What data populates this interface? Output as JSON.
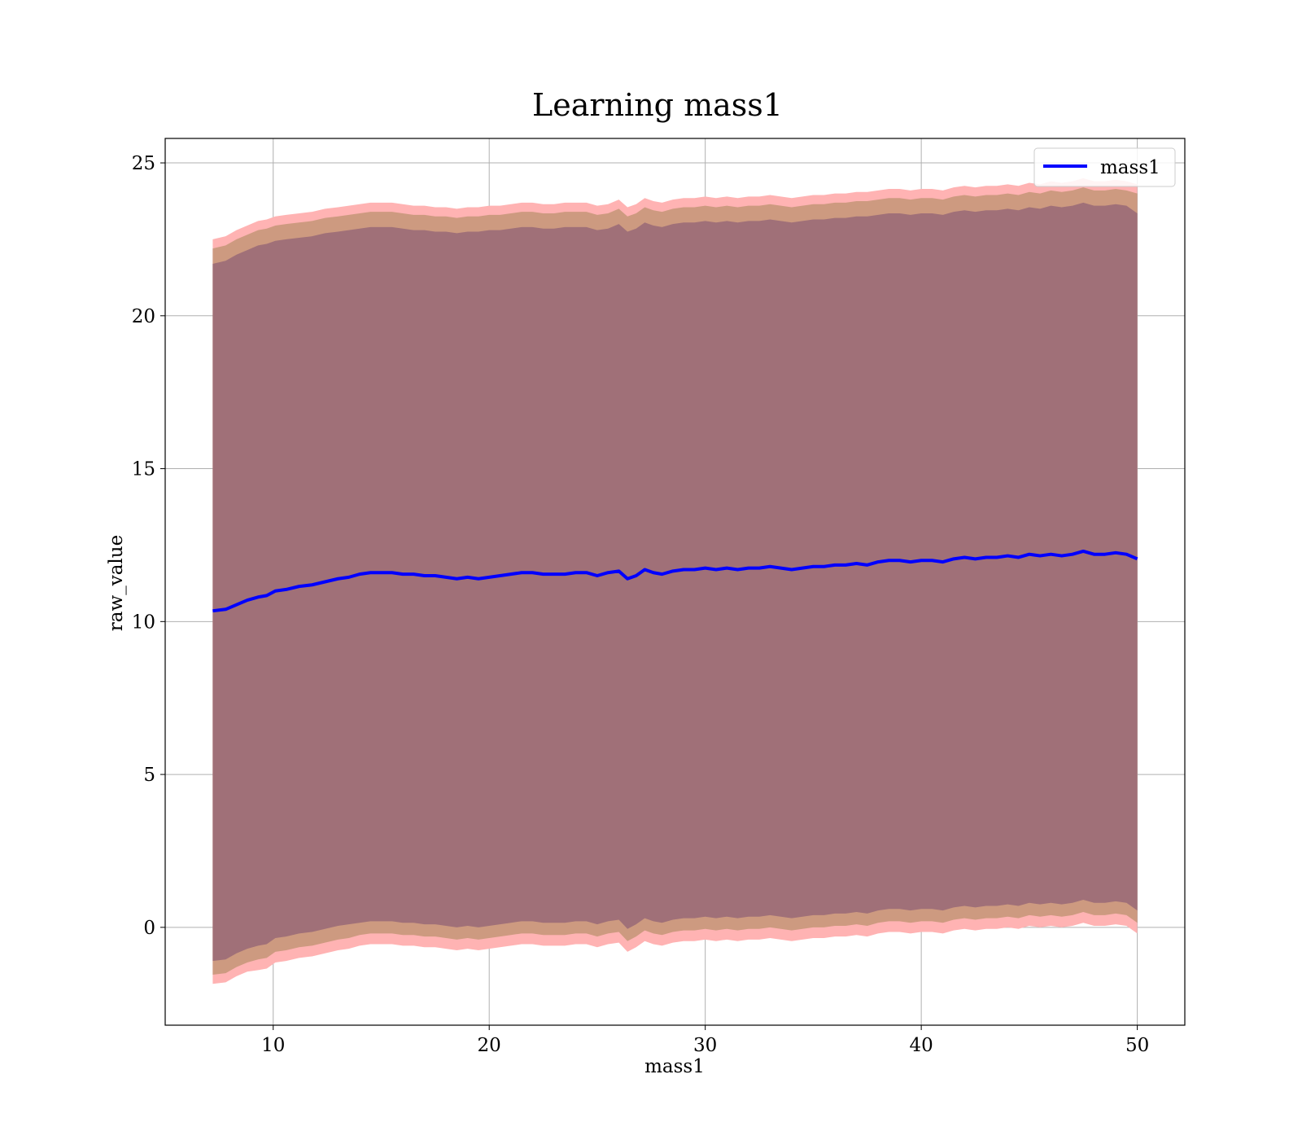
{
  "chart_data": {
    "type": "line",
    "title": "Learning mass1",
    "xlabel": "mass1",
    "ylabel": "raw_value",
    "xlim": [
      5,
      52.2
    ],
    "ylim": [
      -3.2,
      25.8
    ],
    "xticks": [
      10,
      20,
      30,
      40,
      50
    ],
    "yticks": [
      0,
      5,
      10,
      15,
      20,
      25
    ],
    "grid": true,
    "legend": {
      "position": "top-right",
      "entries": [
        "mass1"
      ]
    },
    "colors": {
      "line": "#0000ff",
      "band_outer": "#ffb3b3",
      "band_mid": "#cd9a80",
      "band_inner": "#a07078"
    },
    "x": [
      7.2,
      7.8,
      8.3,
      8.8,
      9.3,
      9.7,
      10.1,
      10.6,
      11.2,
      11.8,
      12.4,
      13.0,
      13.5,
      14.0,
      14.5,
      15.0,
      15.5,
      16.0,
      16.5,
      17.0,
      17.5,
      18.0,
      18.5,
      19.0,
      19.5,
      20.0,
      20.5,
      21.0,
      21.5,
      22.0,
      22.5,
      23.0,
      23.5,
      24.0,
      24.5,
      25.0,
      25.5,
      26.0,
      26.4,
      26.8,
      27.2,
      27.6,
      28.0,
      28.5,
      29.0,
      29.5,
      30.0,
      30.5,
      31.0,
      31.5,
      32.0,
      32.5,
      33.0,
      33.5,
      34.0,
      34.5,
      35.0,
      35.5,
      36.0,
      36.5,
      37.0,
      37.5,
      38.0,
      38.5,
      39.0,
      39.5,
      40.0,
      40.5,
      41.0,
      41.5,
      42.0,
      42.5,
      43.0,
      43.5,
      44.0,
      44.5,
      45.0,
      45.5,
      46.0,
      46.5,
      47.0,
      47.5,
      48.0,
      48.5,
      49.0,
      49.5,
      50.0
    ],
    "series": [
      {
        "name": "mass1",
        "mean": [
          10.35,
          10.4,
          10.55,
          10.7,
          10.8,
          10.85,
          11.0,
          11.05,
          11.15,
          11.2,
          11.3,
          11.4,
          11.45,
          11.55,
          11.6,
          11.6,
          11.6,
          11.55,
          11.55,
          11.5,
          11.5,
          11.45,
          11.4,
          11.45,
          11.4,
          11.45,
          11.5,
          11.55,
          11.6,
          11.6,
          11.55,
          11.55,
          11.55,
          11.6,
          11.6,
          11.5,
          11.6,
          11.65,
          11.4,
          11.5,
          11.7,
          11.6,
          11.55,
          11.65,
          11.7,
          11.7,
          11.75,
          11.7,
          11.75,
          11.7,
          11.75,
          11.75,
          11.8,
          11.75,
          11.7,
          11.75,
          11.8,
          11.8,
          11.85,
          11.85,
          11.9,
          11.85,
          11.95,
          12.0,
          12.0,
          11.95,
          12.0,
          12.0,
          11.95,
          12.05,
          12.1,
          12.05,
          12.1,
          12.1,
          12.15,
          12.1,
          12.2,
          12.15,
          12.2,
          12.15,
          12.2,
          12.3,
          12.2,
          12.2,
          12.25,
          12.2,
          12.05
        ],
        "band_outer_upper": [
          22.5,
          22.6,
          22.8,
          22.95,
          23.1,
          23.15,
          23.25,
          23.3,
          23.35,
          23.4,
          23.5,
          23.55,
          23.6,
          23.65,
          23.7,
          23.7,
          23.7,
          23.65,
          23.6,
          23.6,
          23.55,
          23.55,
          23.5,
          23.55,
          23.55,
          23.6,
          23.6,
          23.65,
          23.7,
          23.7,
          23.65,
          23.65,
          23.7,
          23.7,
          23.7,
          23.6,
          23.65,
          23.8,
          23.55,
          23.65,
          23.85,
          23.75,
          23.7,
          23.8,
          23.85,
          23.85,
          23.9,
          23.85,
          23.9,
          23.85,
          23.9,
          23.9,
          23.95,
          23.9,
          23.85,
          23.9,
          23.95,
          23.95,
          24.0,
          24.0,
          24.05,
          24.05,
          24.1,
          24.15,
          24.15,
          24.1,
          24.15,
          24.15,
          24.1,
          24.2,
          24.25,
          24.2,
          24.25,
          24.25,
          24.3,
          24.25,
          24.35,
          24.3,
          24.4,
          24.35,
          24.4,
          24.5,
          24.4,
          24.4,
          24.45,
          24.4,
          24.3
        ],
        "band_outer_lower": [
          -1.85,
          -1.8,
          -1.6,
          -1.45,
          -1.4,
          -1.35,
          -1.15,
          -1.1,
          -1.0,
          -0.95,
          -0.85,
          -0.75,
          -0.7,
          -0.6,
          -0.55,
          -0.55,
          -0.55,
          -0.6,
          -0.6,
          -0.65,
          -0.65,
          -0.7,
          -0.75,
          -0.7,
          -0.75,
          -0.7,
          -0.65,
          -0.6,
          -0.55,
          -0.55,
          -0.6,
          -0.6,
          -0.6,
          -0.55,
          -0.55,
          -0.65,
          -0.55,
          -0.5,
          -0.8,
          -0.65,
          -0.45,
          -0.55,
          -0.6,
          -0.5,
          -0.45,
          -0.45,
          -0.4,
          -0.45,
          -0.4,
          -0.45,
          -0.4,
          -0.4,
          -0.35,
          -0.4,
          -0.45,
          -0.4,
          -0.35,
          -0.35,
          -0.3,
          -0.3,
          -0.25,
          -0.3,
          -0.2,
          -0.15,
          -0.15,
          -0.2,
          -0.15,
          -0.15,
          -0.2,
          -0.1,
          -0.05,
          -0.1,
          -0.05,
          -0.05,
          0.0,
          -0.05,
          0.05,
          0.0,
          0.05,
          0.0,
          0.05,
          0.15,
          0.05,
          0.05,
          0.1,
          0.05,
          -0.2
        ],
        "band_mid_upper": [
          22.2,
          22.3,
          22.5,
          22.65,
          22.8,
          22.85,
          22.95,
          23.0,
          23.05,
          23.1,
          23.2,
          23.25,
          23.3,
          23.35,
          23.4,
          23.4,
          23.4,
          23.35,
          23.3,
          23.3,
          23.25,
          23.25,
          23.2,
          23.25,
          23.25,
          23.3,
          23.3,
          23.35,
          23.4,
          23.4,
          23.35,
          23.35,
          23.4,
          23.4,
          23.4,
          23.3,
          23.35,
          23.5,
          23.25,
          23.35,
          23.55,
          23.45,
          23.4,
          23.5,
          23.55,
          23.55,
          23.6,
          23.55,
          23.6,
          23.55,
          23.6,
          23.6,
          23.65,
          23.6,
          23.55,
          23.6,
          23.65,
          23.65,
          23.7,
          23.7,
          23.75,
          23.75,
          23.8,
          23.85,
          23.85,
          23.8,
          23.85,
          23.85,
          23.8,
          23.9,
          23.95,
          23.9,
          23.95,
          23.95,
          24.0,
          23.95,
          24.05,
          24.0,
          24.1,
          24.05,
          24.1,
          24.2,
          24.1,
          24.1,
          24.15,
          24.1,
          24.0
        ],
        "band_mid_lower": [
          -1.55,
          -1.5,
          -1.3,
          -1.15,
          -1.05,
          -1.0,
          -0.8,
          -0.75,
          -0.65,
          -0.6,
          -0.5,
          -0.4,
          -0.35,
          -0.25,
          -0.2,
          -0.2,
          -0.2,
          -0.25,
          -0.25,
          -0.3,
          -0.3,
          -0.35,
          -0.4,
          -0.35,
          -0.4,
          -0.35,
          -0.3,
          -0.25,
          -0.2,
          -0.2,
          -0.25,
          -0.25,
          -0.25,
          -0.2,
          -0.2,
          -0.3,
          -0.2,
          -0.15,
          -0.45,
          -0.3,
          -0.1,
          -0.2,
          -0.25,
          -0.15,
          -0.1,
          -0.1,
          -0.05,
          -0.1,
          -0.05,
          -0.1,
          -0.05,
          -0.05,
          0.0,
          -0.05,
          -0.1,
          -0.05,
          0.0,
          0.0,
          0.05,
          0.05,
          0.1,
          0.05,
          0.15,
          0.2,
          0.2,
          0.15,
          0.2,
          0.2,
          0.15,
          0.25,
          0.3,
          0.25,
          0.3,
          0.3,
          0.35,
          0.3,
          0.4,
          0.35,
          0.4,
          0.35,
          0.4,
          0.5,
          0.4,
          0.4,
          0.45,
          0.4,
          0.15
        ],
        "band_inner_upper": [
          21.7,
          21.8,
          22.0,
          22.15,
          22.3,
          22.35,
          22.45,
          22.5,
          22.55,
          22.6,
          22.7,
          22.75,
          22.8,
          22.85,
          22.9,
          22.9,
          22.9,
          22.85,
          22.8,
          22.8,
          22.75,
          22.75,
          22.7,
          22.75,
          22.75,
          22.8,
          22.8,
          22.85,
          22.9,
          22.9,
          22.85,
          22.85,
          22.9,
          22.9,
          22.9,
          22.8,
          22.85,
          23.0,
          22.75,
          22.85,
          23.05,
          22.95,
          22.9,
          23.0,
          23.05,
          23.05,
          23.1,
          23.05,
          23.1,
          23.05,
          23.1,
          23.1,
          23.15,
          23.1,
          23.05,
          23.1,
          23.15,
          23.15,
          23.2,
          23.2,
          23.25,
          23.25,
          23.3,
          23.35,
          23.35,
          23.3,
          23.35,
          23.35,
          23.3,
          23.4,
          23.45,
          23.4,
          23.45,
          23.45,
          23.5,
          23.45,
          23.55,
          23.5,
          23.6,
          23.55,
          23.6,
          23.7,
          23.6,
          23.6,
          23.65,
          23.6,
          23.35
        ],
        "band_inner_lower": [
          -1.1,
          -1.05,
          -0.85,
          -0.7,
          -0.6,
          -0.55,
          -0.35,
          -0.3,
          -0.2,
          -0.15,
          -0.05,
          0.05,
          0.1,
          0.15,
          0.2,
          0.2,
          0.2,
          0.15,
          0.15,
          0.1,
          0.1,
          0.05,
          0.0,
          0.05,
          0.0,
          0.05,
          0.1,
          0.15,
          0.2,
          0.2,
          0.15,
          0.15,
          0.15,
          0.2,
          0.2,
          0.1,
          0.2,
          0.25,
          -0.05,
          0.1,
          0.3,
          0.2,
          0.15,
          0.25,
          0.3,
          0.3,
          0.35,
          0.3,
          0.35,
          0.3,
          0.35,
          0.35,
          0.4,
          0.35,
          0.3,
          0.35,
          0.4,
          0.4,
          0.45,
          0.45,
          0.5,
          0.45,
          0.55,
          0.6,
          0.6,
          0.55,
          0.6,
          0.6,
          0.55,
          0.65,
          0.7,
          0.65,
          0.7,
          0.7,
          0.75,
          0.7,
          0.8,
          0.75,
          0.8,
          0.75,
          0.8,
          0.9,
          0.8,
          0.8,
          0.85,
          0.8,
          0.55
        ]
      }
    ]
  }
}
